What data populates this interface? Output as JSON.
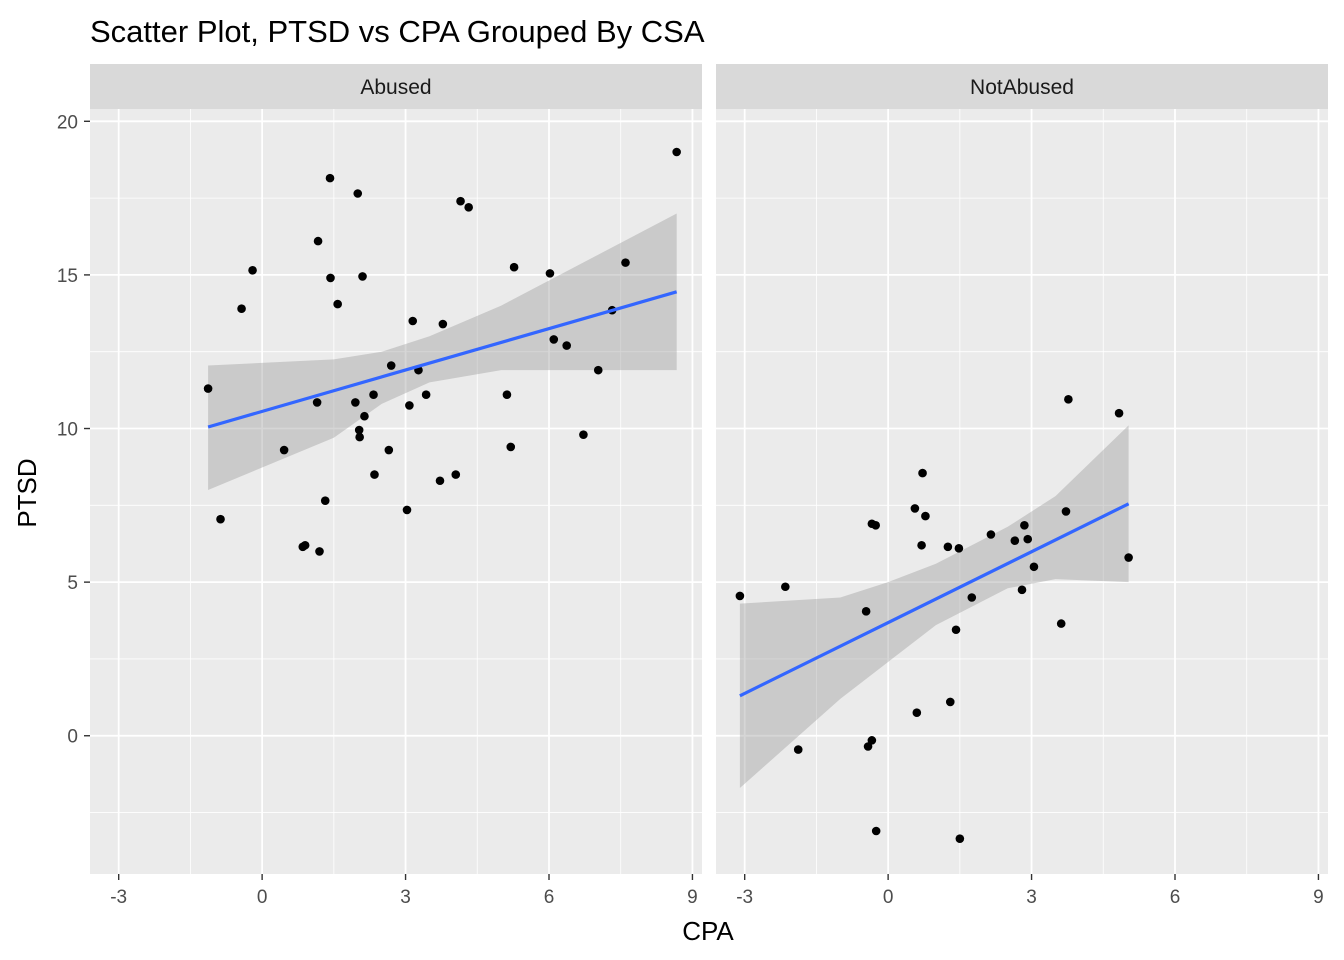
{
  "chart_data": {
    "type": "scatter",
    "title": "Scatter Plot, PTSD vs CPA Grouped By CSA",
    "xlabel": "CPA",
    "ylabel": "PTSD",
    "xlim": [
      -3.6,
      9.2
    ],
    "ylim": [
      -4.5,
      20.4
    ],
    "x_ticks": [
      -3,
      0,
      3,
      6,
      9
    ],
    "x_tick_labels": [
      "-3",
      "0",
      "3",
      "6",
      "9"
    ],
    "y_ticks": [
      0,
      5,
      10,
      15,
      20
    ],
    "y_tick_labels": [
      "0",
      "5",
      "10",
      "15",
      "20"
    ],
    "grid": true,
    "legend": "none",
    "colors": {
      "panel_bg": "#ebebeb",
      "grid": "#ffffff",
      "strip_bg": "#d9d9d9",
      "point": "#000000",
      "fit_line": "#3366ff",
      "ribbon": "#999999"
    },
    "facets": [
      {
        "label": "Abused",
        "points": [
          [
            -1.13,
            11.3
          ],
          [
            -0.87,
            7.05
          ],
          [
            -0.2,
            15.15
          ],
          [
            -0.43,
            13.9
          ],
          [
            0.46,
            9.3
          ],
          [
            0.85,
            6.15
          ],
          [
            0.9,
            6.2
          ],
          [
            1.15,
            10.85
          ],
          [
            1.17,
            16.1
          ],
          [
            1.2,
            6.0
          ],
          [
            1.32,
            7.65
          ],
          [
            1.42,
            18.15
          ],
          [
            1.43,
            14.9
          ],
          [
            1.58,
            14.05
          ],
          [
            1.95,
            10.85
          ],
          [
            2.0,
            17.65
          ],
          [
            2.03,
            9.95
          ],
          [
            2.04,
            9.72
          ],
          [
            2.1,
            14.95
          ],
          [
            2.14,
            10.4
          ],
          [
            2.33,
            11.1
          ],
          [
            2.35,
            8.5
          ],
          [
            2.65,
            9.3
          ],
          [
            2.7,
            12.05
          ],
          [
            3.03,
            7.35
          ],
          [
            3.08,
            10.75
          ],
          [
            3.15,
            13.5
          ],
          [
            3.27,
            11.9
          ],
          [
            3.43,
            11.1
          ],
          [
            3.72,
            8.3
          ],
          [
            3.78,
            13.4
          ],
          [
            4.05,
            8.5
          ],
          [
            4.15,
            17.4
          ],
          [
            4.32,
            17.2
          ],
          [
            5.12,
            11.1
          ],
          [
            5.2,
            9.4
          ],
          [
            5.27,
            15.25
          ],
          [
            6.02,
            15.05
          ],
          [
            6.1,
            12.9
          ],
          [
            6.37,
            12.7
          ],
          [
            6.72,
            9.8
          ],
          [
            7.03,
            11.9
          ],
          [
            7.6,
            15.4
          ],
          [
            7.32,
            13.85
          ],
          [
            8.67,
            19.0
          ]
        ],
        "fit": {
          "x": [
            -1.13,
            8.67
          ],
          "y": [
            10.05,
            14.45
          ]
        },
        "ribbon_lower": [
          [
            -1.13,
            8.0
          ],
          [
            1.5,
            9.7
          ],
          [
            2.5,
            10.8
          ],
          [
            3.5,
            11.5
          ],
          [
            5.0,
            11.9
          ],
          [
            8.67,
            11.9
          ]
        ],
        "ribbon_upper": [
          [
            -1.13,
            12.05
          ],
          [
            1.5,
            12.25
          ],
          [
            2.5,
            12.5
          ],
          [
            3.5,
            13.0
          ],
          [
            5.0,
            14.0
          ],
          [
            8.67,
            17.0
          ]
        ]
      },
      {
        "label": "NotAbused",
        "points": [
          [
            -3.1,
            4.55
          ],
          [
            -2.15,
            4.85
          ],
          [
            -1.88,
            -0.45
          ],
          [
            -0.46,
            4.05
          ],
          [
            -0.42,
            -0.35
          ],
          [
            -0.34,
            6.9
          ],
          [
            -0.34,
            -0.15
          ],
          [
            -0.26,
            6.85
          ],
          [
            -0.25,
            -3.1
          ],
          [
            0.56,
            7.4
          ],
          [
            0.6,
            0.75
          ],
          [
            0.7,
            6.2
          ],
          [
            0.72,
            8.55
          ],
          [
            0.78,
            7.15
          ],
          [
            1.25,
            6.15
          ],
          [
            1.3,
            1.1
          ],
          [
            1.42,
            3.45
          ],
          [
            1.48,
            6.1
          ],
          [
            1.5,
            -3.35
          ],
          [
            1.75,
            4.5
          ],
          [
            2.15,
            6.55
          ],
          [
            2.65,
            6.35
          ],
          [
            2.8,
            4.75
          ],
          [
            2.85,
            6.85
          ],
          [
            2.92,
            6.4
          ],
          [
            3.05,
            5.5
          ],
          [
            3.62,
            3.65
          ],
          [
            3.72,
            7.3
          ],
          [
            3.77,
            10.95
          ],
          [
            4.83,
            10.5
          ],
          [
            5.03,
            5.8
          ]
        ],
        "fit": {
          "x": [
            -3.1,
            5.03
          ],
          "y": [
            1.3,
            7.55
          ]
        },
        "ribbon_lower": [
          [
            -3.1,
            -1.7
          ],
          [
            -1.0,
            1.2
          ],
          [
            0.0,
            2.4
          ],
          [
            1.0,
            3.6
          ],
          [
            2.5,
            4.8
          ],
          [
            3.5,
            5.1
          ],
          [
            5.03,
            5.0
          ]
        ],
        "ribbon_upper": [
          [
            -3.1,
            4.3
          ],
          [
            -1.0,
            4.5
          ],
          [
            0.0,
            5.0
          ],
          [
            1.0,
            5.6
          ],
          [
            2.5,
            6.8
          ],
          [
            3.5,
            7.8
          ],
          [
            5.03,
            10.1
          ]
        ]
      }
    ]
  }
}
